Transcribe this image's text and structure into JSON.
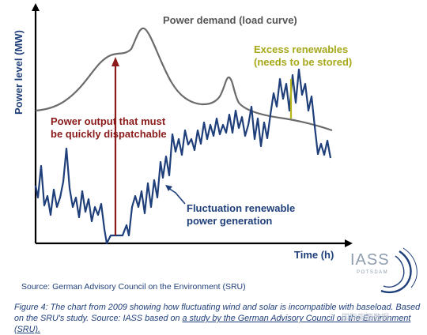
{
  "diagram": {
    "y_axis_label": "Power level (MW)",
    "x_axis_label": "Time (h)",
    "load_curve_label": "Power demand (load curve)",
    "dispatch_label": [
      "Power output that must",
      "be quickly dispatchable"
    ],
    "excess_label": [
      "Excess renewables",
      "(needs to be stored)"
    ],
    "fluctuation_label": [
      "Fluctuation renewable",
      "power generation"
    ],
    "colors": {
      "load_curve": "#6b6b6b",
      "renewables": "#1f3f7a",
      "dispatch": "#8b1a1a",
      "excess": "#b5b51a",
      "axes": "#000000",
      "label_text": "#1f3f7a"
    }
  },
  "logo": {
    "name": "IASS",
    "subtitle": "POTSDAM"
  },
  "source_line": "Source: German Advisory Council on the Environment (SRU)",
  "caption": {
    "text_before_link": "Figure 4: The chart from 2009 showing how fluctuating wind and solar is incompatible with baseload. Based on the SRU's study. Source: IASS based on ",
    "link_text": "a study  by the German Advisory Council on the Environment (SRU).",
    "text_after_link": ""
  },
  "watermark": "国际能源数据"
}
